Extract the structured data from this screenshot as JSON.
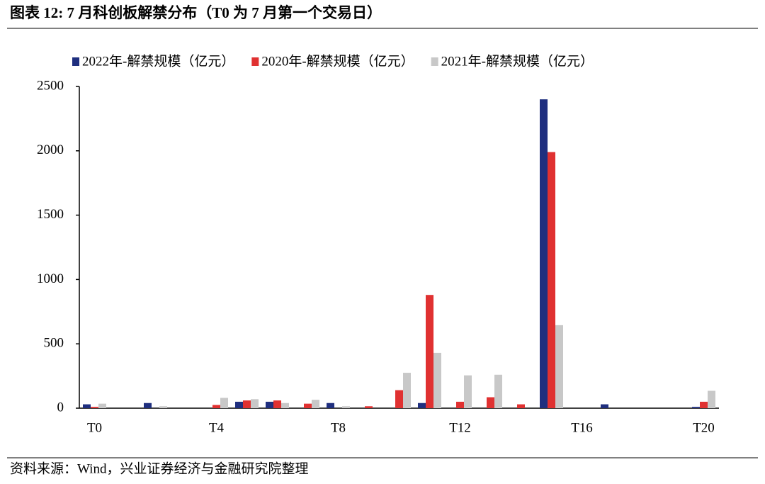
{
  "chart_data": {
    "type": "bar",
    "title": "图表 12: 7 月科创板解禁分布（T0 为 7 月第一个交易日）",
    "source": "资料来源：Wind，兴业证券经济与金融研究院整理",
    "categories": [
      "T0",
      null,
      null,
      null,
      "T4",
      null,
      null,
      null,
      "T8",
      null,
      null,
      null,
      "T12",
      null,
      null,
      null,
      "T16",
      null,
      null,
      null,
      "T20"
    ],
    "series": [
      {
        "name": "2022年-解禁规模（亿元）",
        "color": "#1f2f7f",
        "values": [
          30,
          0,
          40,
          0,
          0,
          50,
          50,
          0,
          40,
          0,
          0,
          40,
          0,
          0,
          0,
          2400,
          0,
          30,
          0,
          0,
          10
        ]
      },
      {
        "name": "2020年-解禁规模（亿元）",
        "color": "#e03131",
        "values": [
          10,
          0,
          0,
          0,
          25,
          60,
          60,
          35,
          0,
          15,
          140,
          880,
          50,
          85,
          30,
          1990,
          0,
          0,
          0,
          0,
          50
        ]
      },
      {
        "name": "2021年-解禁规模（亿元）",
        "color": "#c8c8c8",
        "values": [
          35,
          0,
          15,
          0,
          80,
          70,
          40,
          65,
          15,
          0,
          275,
          430,
          255,
          260,
          0,
          645,
          0,
          0,
          0,
          0,
          135
        ]
      }
    ],
    "ylim": [
      0,
      2500
    ],
    "yticks": [
      0,
      500,
      1000,
      1500,
      2000,
      2500
    ]
  }
}
